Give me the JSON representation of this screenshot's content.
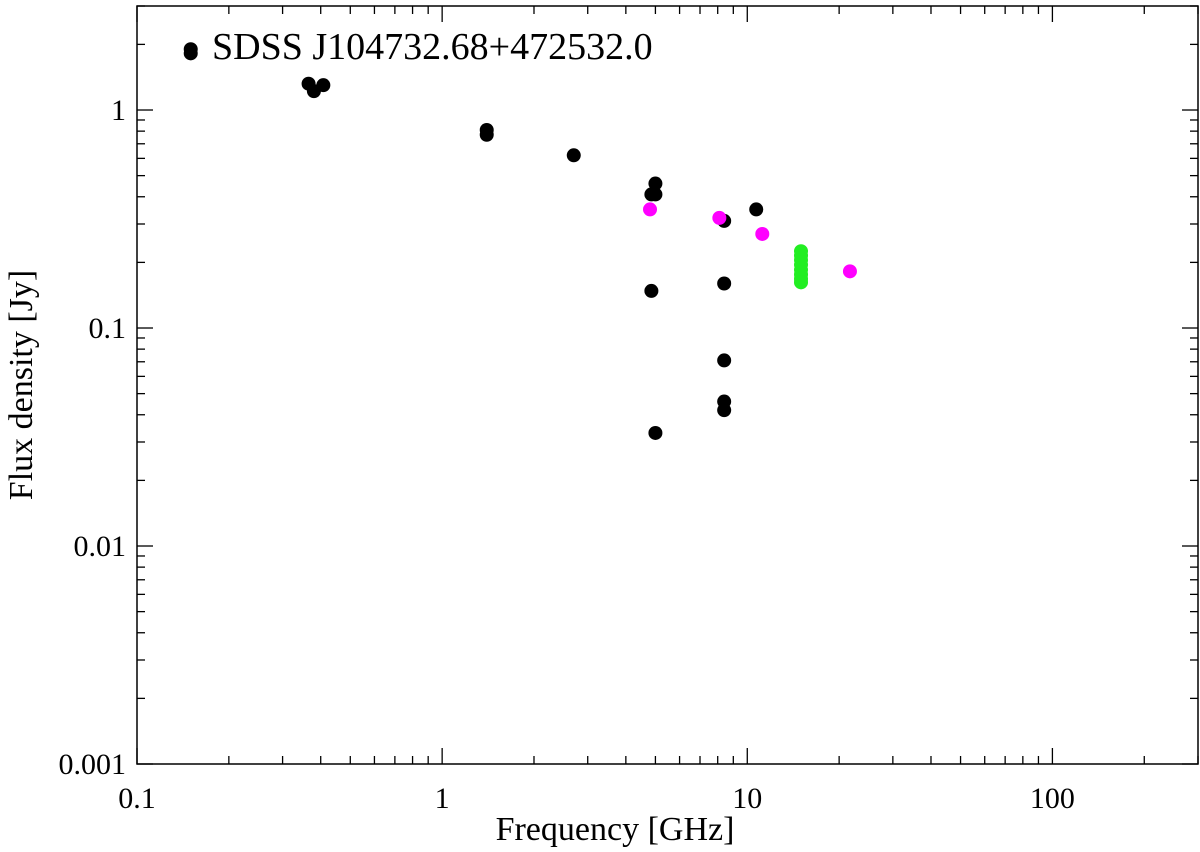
{
  "chart_data": {
    "type": "scatter",
    "title": "SDSS J104732.68+472532.0",
    "xlabel": "Frequency [GHz]",
    "ylabel": "Flux density [Jy]",
    "xscale": "log",
    "yscale": "log",
    "xlim": [
      0.1,
      300
    ],
    "ylim": [
      0.001,
      3
    ],
    "x_ticks": [
      {
        "value": 0.1,
        "label": "0.1"
      },
      {
        "value": 1,
        "label": "1"
      },
      {
        "value": 10,
        "label": "10"
      },
      {
        "value": 100,
        "label": "100"
      }
    ],
    "y_ticks": [
      {
        "value": 0.001,
        "label": "0.001"
      },
      {
        "value": 0.01,
        "label": "0.01"
      },
      {
        "value": 0.1,
        "label": "0.1"
      },
      {
        "value": 1,
        "label": "1"
      }
    ],
    "grid": false,
    "legend": null,
    "series": [
      {
        "color": "#000000",
        "points": [
          {
            "x": 0.15,
            "y": 1.82
          },
          {
            "x": 0.15,
            "y": 1.9
          },
          {
            "x": 0.365,
            "y": 1.32
          },
          {
            "x": 0.38,
            "y": 1.22
          },
          {
            "x": 0.408,
            "y": 1.3
          },
          {
            "x": 1.4,
            "y": 0.77
          },
          {
            "x": 1.4,
            "y": 0.81
          },
          {
            "x": 2.7,
            "y": 0.62
          },
          {
            "x": 4.85,
            "y": 0.41
          },
          {
            "x": 4.85,
            "y": 0.148
          },
          {
            "x": 5.0,
            "y": 0.46
          },
          {
            "x": 5.0,
            "y": 0.41
          },
          {
            "x": 5.0,
            "y": 0.033
          },
          {
            "x": 8.4,
            "y": 0.31
          },
          {
            "x": 8.4,
            "y": 0.16
          },
          {
            "x": 8.4,
            "y": 0.071
          },
          {
            "x": 8.4,
            "y": 0.046
          },
          {
            "x": 8.4,
            "y": 0.042
          },
          {
            "x": 10.7,
            "y": 0.35
          }
        ]
      },
      {
        "color": "#ff00ff",
        "points": [
          {
            "x": 4.8,
            "y": 0.35
          },
          {
            "x": 8.1,
            "y": 0.32
          },
          {
            "x": 11.2,
            "y": 0.27
          },
          {
            "x": 21.7,
            "y": 0.182
          }
        ]
      },
      {
        "color": "#22ee22",
        "points": [
          {
            "x": 15.0,
            "y": 0.225
          },
          {
            "x": 15.0,
            "y": 0.215
          },
          {
            "x": 15.0,
            "y": 0.205
          },
          {
            "x": 15.0,
            "y": 0.195
          },
          {
            "x": 15.0,
            "y": 0.185
          },
          {
            "x": 15.0,
            "y": 0.176
          },
          {
            "x": 15.0,
            "y": 0.168
          },
          {
            "x": 15.0,
            "y": 0.162
          }
        ]
      }
    ]
  }
}
